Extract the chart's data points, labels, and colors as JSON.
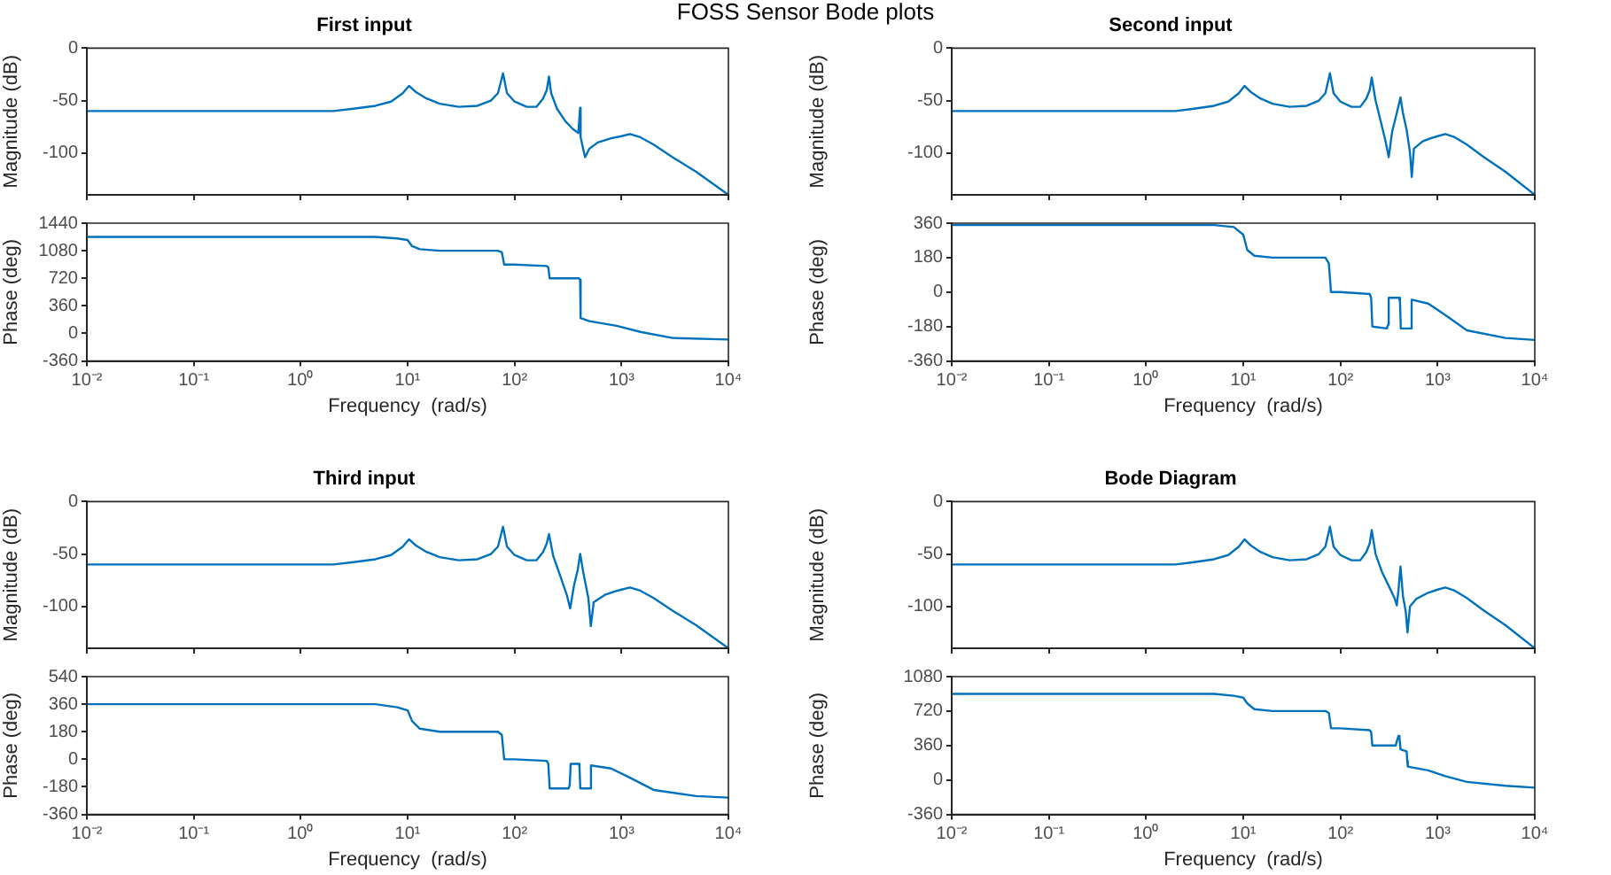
{
  "chart_data": [
    {
      "type": "line",
      "title": "First input",
      "ylabel": "Magnitude (dB)",
      "annotations": [
        "FOSS Sensor Bode plots"
      ],
      "log": "x",
      "tick_labels": "y",
      "color": "#0072bd",
      "xlim": [
        0.01,
        10000
      ],
      "xticks": [
        {
          "value": 0.01,
          "label": null
        },
        {
          "value": 0.1,
          "label": null
        },
        {
          "value": 1,
          "label": null
        },
        {
          "value": 10,
          "label": null
        },
        {
          "value": 100,
          "label": null
        },
        {
          "value": 1000,
          "label": null
        },
        {
          "value": 10000,
          "label": null
        }
      ],
      "ylim": [
        -140,
        0
      ],
      "yticks": [
        -100,
        -50,
        0
      ],
      "x": [
        0.01,
        0.1,
        1,
        2,
        3,
        5,
        7,
        9,
        10.3,
        12,
        15,
        20,
        30,
        45,
        60,
        70,
        78,
        85,
        100,
        130,
        160,
        185,
        200,
        210,
        220,
        250,
        300,
        350,
        395,
        410,
        415,
        440,
        457,
        500,
        600,
        800,
        1000,
        1200,
        1500,
        2000,
        3000,
        5000,
        10000
      ],
      "values": [
        -60,
        -60,
        -60,
        -60,
        -58,
        -55,
        -51,
        -43,
        -36,
        -42,
        -48,
        -53,
        -56,
        -55,
        -50,
        -43,
        -24,
        -43,
        -51,
        -56,
        -56,
        -48,
        -40,
        -27,
        -43,
        -58,
        -70,
        -77,
        -81,
        -57,
        -85,
        -97,
        -104,
        -96,
        -90,
        -86,
        -84,
        -82,
        -85,
        -92,
        -104,
        -118,
        -140
      ]
    },
    {
      "type": "line",
      "xlabel": "Frequency  (rad/s)",
      "ylabel": "Phase (deg)",
      "log": "x",
      "color": "#0072bd",
      "xlim": [
        0.01,
        10000
      ],
      "xticks": [
        {
          "value": 0.01,
          "label": "10⁻²"
        },
        {
          "value": 0.1,
          "label": "10⁻¹"
        },
        {
          "value": 1,
          "label": "10⁰"
        },
        {
          "value": 10,
          "label": "10¹"
        },
        {
          "value": 100,
          "label": "10²"
        },
        {
          "value": 1000,
          "label": "10³"
        },
        {
          "value": 10000,
          "label": "10⁴"
        }
      ],
      "ylim": [
        -360,
        1440
      ],
      "yticks": [
        -360,
        0,
        360,
        720,
        1080,
        1440
      ],
      "x": [
        0.01,
        1,
        5,
        8,
        10,
        11,
        13,
        20,
        70,
        76,
        80,
        100,
        200,
        207,
        213,
        300,
        400,
        410,
        415,
        500,
        900,
        1500,
        3000,
        10000
      ],
      "values": [
        1260,
        1260,
        1260,
        1240,
        1220,
        1140,
        1100,
        1080,
        1080,
        1060,
        900,
        900,
        880,
        860,
        720,
        720,
        720,
        700,
        200,
        160,
        100,
        20,
        -60,
        -80
      ]
    },
    {
      "type": "line",
      "title": "Second input",
      "ylabel": "Magnitude (dB)",
      "log": "x",
      "tick_labels": "y",
      "color": "#0072bd",
      "xlim": [
        0.01,
        10000
      ],
      "xticks": [
        {
          "value": 0.01,
          "label": null
        },
        {
          "value": 0.1,
          "label": null
        },
        {
          "value": 1,
          "label": null
        },
        {
          "value": 10,
          "label": null
        },
        {
          "value": 100,
          "label": null
        },
        {
          "value": 1000,
          "label": null
        },
        {
          "value": 10000,
          "label": null
        }
      ],
      "ylim": [
        -140,
        0
      ],
      "yticks": [
        -100,
        -50,
        0
      ],
      "x": [
        0.01,
        0.1,
        1,
        2,
        3,
        5,
        7,
        9,
        10.3,
        12,
        15,
        20,
        30,
        45,
        60,
        70,
        78,
        85,
        100,
        130,
        160,
        185,
        200,
        210,
        230,
        260,
        290,
        314,
        340,
        380,
        415,
        440,
        480,
        520,
        542,
        570,
        700,
        850,
        1000,
        1200,
        1500,
        2000,
        3000,
        5000,
        10000
      ],
      "values": [
        -60,
        -60,
        -60,
        -60,
        -58,
        -55,
        -51,
        -43,
        -36,
        -42,
        -48,
        -53,
        -56,
        -55,
        -50,
        -43,
        -24,
        -43,
        -51,
        -56,
        -56,
        -48,
        -40,
        -28,
        -50,
        -70,
        -88,
        -104,
        -80,
        -62,
        -47,
        -62,
        -78,
        -100,
        -123,
        -96,
        -89,
        -86,
        -84,
        -82,
        -85,
        -92,
        -104,
        -118,
        -140
      ]
    },
    {
      "type": "line",
      "xlabel": "Frequency  (rad/s)",
      "ylabel": "Phase (deg)",
      "log": "x",
      "color": "#0072bd",
      "xlim": [
        0.01,
        10000
      ],
      "xticks": [
        {
          "value": 0.01,
          "label": "10⁻²"
        },
        {
          "value": 0.1,
          "label": "10⁻¹"
        },
        {
          "value": 1,
          "label": "10⁰"
        },
        {
          "value": 10,
          "label": "10¹"
        },
        {
          "value": 100,
          "label": "10²"
        },
        {
          "value": 1000,
          "label": "10³"
        },
        {
          "value": 10000,
          "label": "10⁴"
        }
      ],
      "ylim": [
        -360,
        360
      ],
      "yticks": [
        -360,
        -180,
        0,
        180,
        360
      ],
      "x": [
        0.01,
        1,
        5,
        8,
        10,
        11,
        13,
        20,
        70,
        76,
        80,
        100,
        200,
        207,
        213,
        300,
        309,
        314,
        320,
        400,
        410,
        418,
        530,
        536,
        545,
        800,
        1200,
        2000,
        5000,
        10000
      ],
      "values": [
        350,
        350,
        350,
        340,
        300,
        220,
        190,
        180,
        180,
        150,
        0,
        0,
        -10,
        -30,
        -180,
        -190,
        -170,
        -30,
        -30,
        -30,
        -50,
        -190,
        -190,
        -190,
        -40,
        -60,
        -120,
        -200,
        -240,
        -250
      ]
    },
    {
      "type": "line",
      "title": "Third input",
      "ylabel": "Magnitude (dB)",
      "log": "x",
      "tick_labels": "y",
      "color": "#0072bd",
      "xlim": [
        0.01,
        10000
      ],
      "xticks": [
        {
          "value": 0.01,
          "label": null
        },
        {
          "value": 0.1,
          "label": null
        },
        {
          "value": 1,
          "label": null
        },
        {
          "value": 10,
          "label": null
        },
        {
          "value": 100,
          "label": null
        },
        {
          "value": 1000,
          "label": null
        },
        {
          "value": 10000,
          "label": null
        }
      ],
      "ylim": [
        -140,
        0
      ],
      "yticks": [
        -100,
        -50,
        0
      ],
      "x": [
        0.01,
        0.1,
        1,
        2,
        3,
        5,
        7,
        9,
        10.3,
        12,
        15,
        20,
        30,
        45,
        60,
        70,
        78,
        85,
        100,
        130,
        160,
        185,
        200,
        210,
        230,
        270,
        310,
        331,
        360,
        390,
        411,
        440,
        490,
        517,
        550,
        700,
        850,
        1000,
        1200,
        1500,
        2000,
        3000,
        5000,
        10000
      ],
      "values": [
        -60,
        -60,
        -60,
        -60,
        -58,
        -55,
        -51,
        -43,
        -36,
        -42,
        -48,
        -53,
        -56,
        -55,
        -50,
        -43,
        -24,
        -43,
        -51,
        -56,
        -56,
        -48,
        -40,
        -31,
        -52,
        -72,
        -90,
        -102,
        -80,
        -65,
        -50,
        -68,
        -92,
        -119,
        -96,
        -89,
        -86,
        -84,
        -82,
        -85,
        -92,
        -104,
        -118,
        -140
      ]
    },
    {
      "type": "line",
      "xlabel": "Frequency  (rad/s)",
      "ylabel": "Phase (deg)",
      "log": "x",
      "color": "#0072bd",
      "xlim": [
        0.01,
        10000
      ],
      "xticks": [
        {
          "value": 0.01,
          "label": "10⁻²"
        },
        {
          "value": 0.1,
          "label": "10⁻¹"
        },
        {
          "value": 1,
          "label": "10⁰"
        },
        {
          "value": 10,
          "label": "10¹"
        },
        {
          "value": 100,
          "label": "10²"
        },
        {
          "value": 1000,
          "label": "10³"
        },
        {
          "value": 10000,
          "label": "10⁴"
        }
      ],
      "ylim": [
        -360,
        540
      ],
      "yticks": [
        -360,
        -180,
        0,
        180,
        360,
        540
      ],
      "x": [
        0.01,
        1,
        5,
        8,
        10,
        11,
        13,
        20,
        70,
        76,
        80,
        100,
        200,
        207,
        213,
        320,
        328,
        335,
        400,
        405,
        412,
        510,
        515,
        522,
        800,
        1200,
        2000,
        5000,
        10000
      ],
      "values": [
        360,
        360,
        360,
        340,
        320,
        250,
        200,
        180,
        180,
        160,
        0,
        0,
        -10,
        -30,
        -190,
        -190,
        -170,
        -30,
        -30,
        -50,
        -190,
        -190,
        -190,
        -40,
        -60,
        -120,
        -200,
        -240,
        -250
      ]
    },
    {
      "type": "line",
      "title": "Bode Diagram",
      "ylabel": "Magnitude (dB)",
      "log": "x",
      "tick_labels": "y",
      "color": "#0072bd",
      "xlim": [
        0.01,
        10000
      ],
      "xticks": [
        {
          "value": 0.01,
          "label": null
        },
        {
          "value": 0.1,
          "label": null
        },
        {
          "value": 1,
          "label": null
        },
        {
          "value": 10,
          "label": null
        },
        {
          "value": 100,
          "label": null
        },
        {
          "value": 1000,
          "label": null
        },
        {
          "value": 10000,
          "label": null
        }
      ],
      "ylim": [
        -140,
        0
      ],
      "yticks": [
        -100,
        -50,
        0
      ],
      "x": [
        0.01,
        0.1,
        1,
        2,
        3,
        5,
        7,
        9,
        10.3,
        12,
        15,
        20,
        30,
        45,
        60,
        70,
        78,
        85,
        100,
        130,
        160,
        185,
        200,
        210,
        230,
        270,
        320,
        360,
        380,
        395,
        415,
        440,
        470,
        490,
        520,
        600,
        800,
        1000,
        1200,
        1500,
        2000,
        3000,
        5000,
        10000
      ],
      "values": [
        -60,
        -60,
        -60,
        -60,
        -58,
        -55,
        -51,
        -43,
        -36,
        -42,
        -48,
        -53,
        -56,
        -55,
        -50,
        -43,
        -24,
        -43,
        -51,
        -56,
        -56,
        -48,
        -40,
        -27,
        -50,
        -68,
        -82,
        -92,
        -99,
        -85,
        -62,
        -90,
        -105,
        -125,
        -100,
        -93,
        -87,
        -84,
        -82,
        -85,
        -92,
        -104,
        -118,
        -140
      ]
    },
    {
      "type": "line",
      "xlabel": "Frequency  (rad/s)",
      "ylabel": "Phase (deg)",
      "log": "x",
      "color": "#0072bd",
      "xlim": [
        0.01,
        10000
      ],
      "xticks": [
        {
          "value": 0.01,
          "label": "10⁻²"
        },
        {
          "value": 0.1,
          "label": "10⁻¹"
        },
        {
          "value": 1,
          "label": "10⁰"
        },
        {
          "value": 10,
          "label": "10¹"
        },
        {
          "value": 100,
          "label": "10²"
        },
        {
          "value": 1000,
          "label": "10³"
        },
        {
          "value": 10000,
          "label": "10⁴"
        }
      ],
      "ylim": [
        -360,
        1080
      ],
      "yticks": [
        -360,
        0,
        360,
        720,
        1080
      ],
      "x": [
        0.01,
        1,
        5,
        8,
        10,
        11,
        13,
        20,
        70,
        76,
        80,
        100,
        200,
        207,
        213,
        370,
        395,
        405,
        415,
        480,
        487,
        493,
        800,
        1200,
        2000,
        5000,
        10000
      ],
      "values": [
        900,
        900,
        900,
        880,
        860,
        800,
        740,
        720,
        720,
        700,
        540,
        540,
        520,
        500,
        360,
        360,
        460,
        440,
        320,
        300,
        200,
        140,
        100,
        40,
        -20,
        -60,
        -80
      ]
    }
  ]
}
